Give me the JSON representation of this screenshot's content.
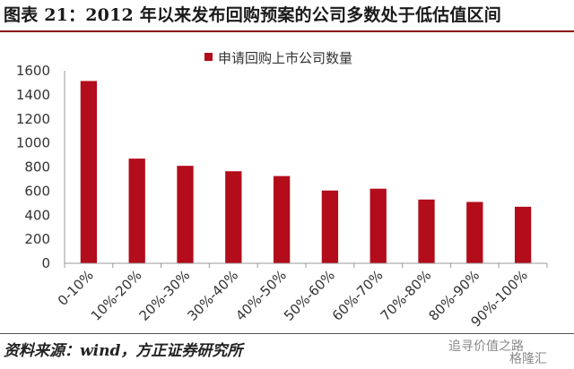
{
  "header": {
    "title": "图表 21：2012 年以来发布回购预案的公司多数处于低估值区间"
  },
  "footer": {
    "source": "资料来源：wind，方正证券研究所"
  },
  "watermark": {
    "line1": "追寻价值之路",
    "line2": "格隆汇"
  },
  "colors": {
    "bar": "#b30c1a",
    "title_rule": "#8b0000"
  },
  "chart_data": {
    "type": "bar",
    "categories": [
      "0-10%",
      "10%-20%",
      "20%-30%",
      "30%-40%",
      "40%-50%",
      "50%-60%",
      "60%-70%",
      "70%-80%",
      "80%-90%",
      "90%-100%"
    ],
    "series": [
      {
        "name": "申请回购上市公司数量",
        "values": [
          1515,
          870,
          810,
          765,
          725,
          605,
          620,
          530,
          510,
          470
        ]
      }
    ],
    "title": "",
    "xlabel": "",
    "ylabel": "",
    "ylim": [
      0,
      1600
    ],
    "yticks": [
      0,
      200,
      400,
      600,
      800,
      1000,
      1200,
      1400,
      1600
    ],
    "grid": false,
    "legend_position": "top-center"
  }
}
